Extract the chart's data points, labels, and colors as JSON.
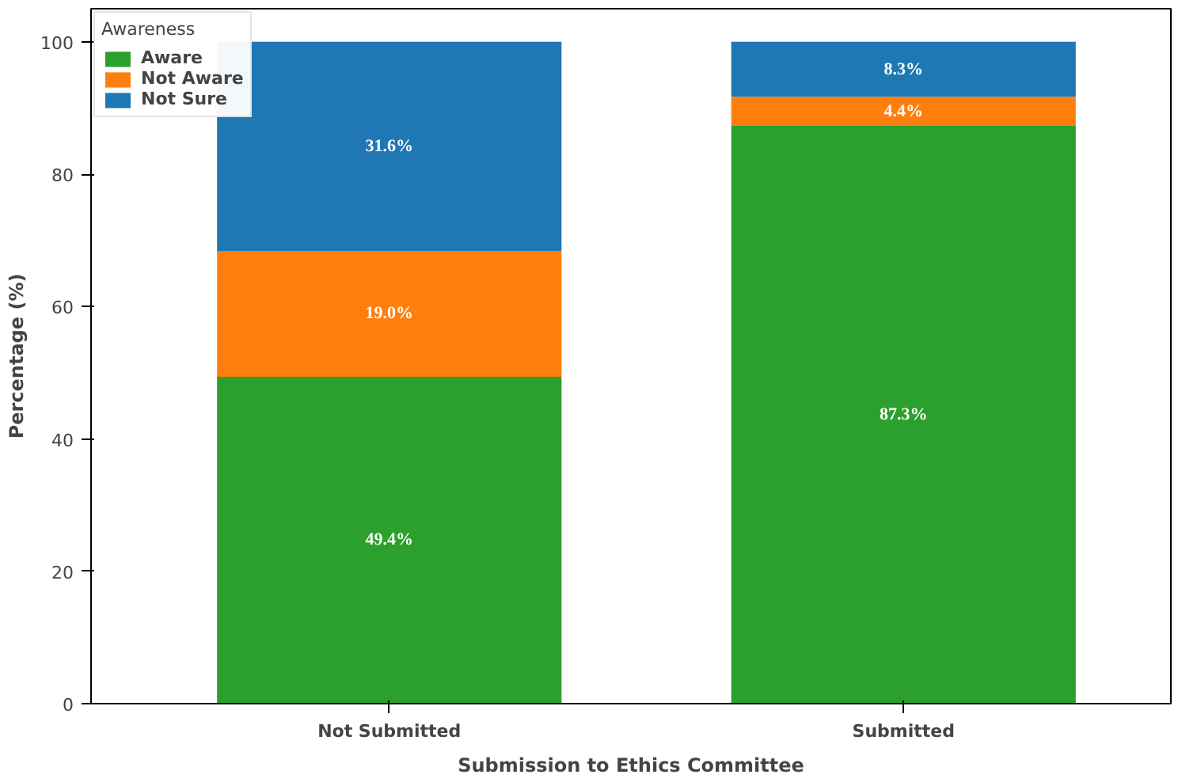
{
  "chart_data": {
    "type": "bar",
    "stacked": true,
    "xlabel": "Submission to Ethics Committee",
    "ylabel": "Percentage (%)",
    "legend_title": "Awareness",
    "legend": "top left",
    "categories": [
      "Not Submitted",
      "Submitted"
    ],
    "ylim": [
      0,
      105
    ],
    "yticks": [
      0,
      20,
      40,
      60,
      80,
      100
    ],
    "grid": false,
    "series": [
      {
        "name": "Aware",
        "color": "#2ca02c",
        "values": [
          49.4,
          87.3
        ],
        "value_labels": [
          "49.4%",
          "87.3%"
        ]
      },
      {
        "name": "Not Aware",
        "color": "#ff7f0e",
        "values": [
          19.0,
          4.4
        ],
        "value_labels": [
          "19.0%",
          "4.4%"
        ]
      },
      {
        "name": "Not Sure",
        "color": "#1f77b4",
        "values": [
          31.6,
          8.3
        ],
        "value_labels": [
          "31.6%",
          "8.3%"
        ]
      }
    ]
  }
}
